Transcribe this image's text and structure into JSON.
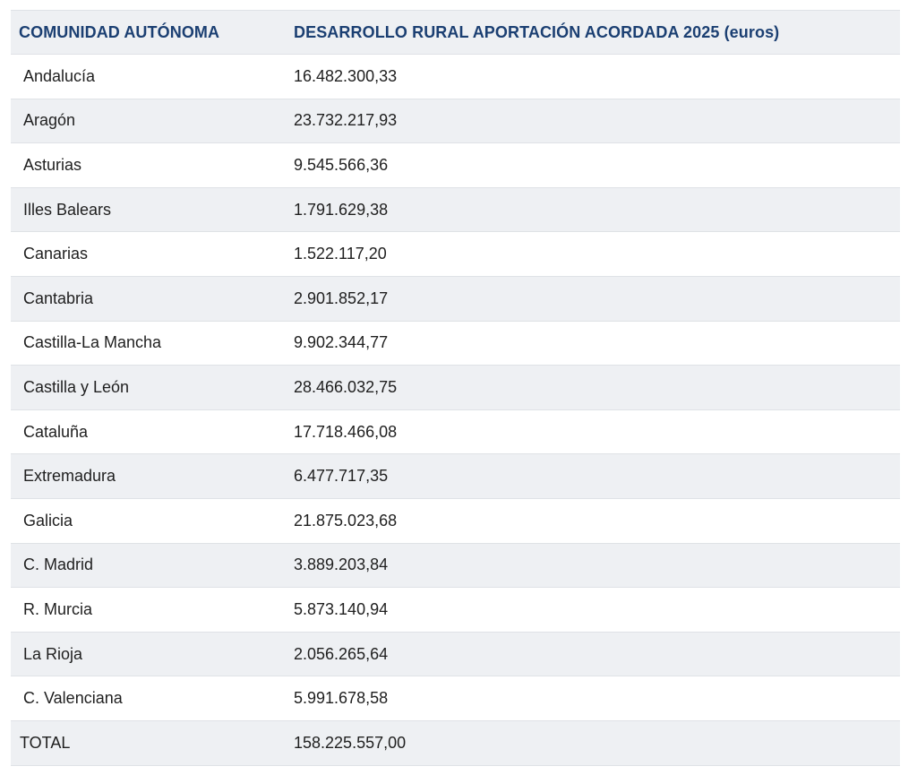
{
  "table": {
    "headers": {
      "region": "COMUNIDAD AUTÓNOMA",
      "amount": "DESARROLLO RURAL APORTACIÓN ACORDADA 2025 (euros)"
    },
    "rows": [
      {
        "region": "Andalucía",
        "amount": "16.482.300,33"
      },
      {
        "region": "Aragón",
        "amount": "23.732.217,93"
      },
      {
        "region": "Asturias",
        "amount": "9.545.566,36"
      },
      {
        "region": "Illes Balears",
        "amount": "1.791.629,38"
      },
      {
        "region": "Canarias",
        "amount": "1.522.117,20"
      },
      {
        "region": "Cantabria",
        "amount": "2.901.852,17"
      },
      {
        "region": "Castilla-La Mancha",
        "amount": "9.902.344,77"
      },
      {
        "region": "Castilla y León",
        "amount": "28.466.032,75"
      },
      {
        "region": "Cataluña",
        "amount": "17.718.466,08"
      },
      {
        "region": "Extremadura",
        "amount": "6.477.717,35"
      },
      {
        "region": "Galicia",
        "amount": "21.875.023,68"
      },
      {
        "region": "C. Madrid",
        "amount": "3.889.203,84"
      },
      {
        "region": "R. Murcia",
        "amount": "5.873.140,94"
      },
      {
        "region": "La Rioja",
        "amount": "2.056.265,64"
      },
      {
        "region": "C. Valenciana",
        "amount": "5.991.678,58"
      }
    ],
    "total": {
      "region": "TOTAL",
      "amount": "158.225.557,00"
    }
  }
}
